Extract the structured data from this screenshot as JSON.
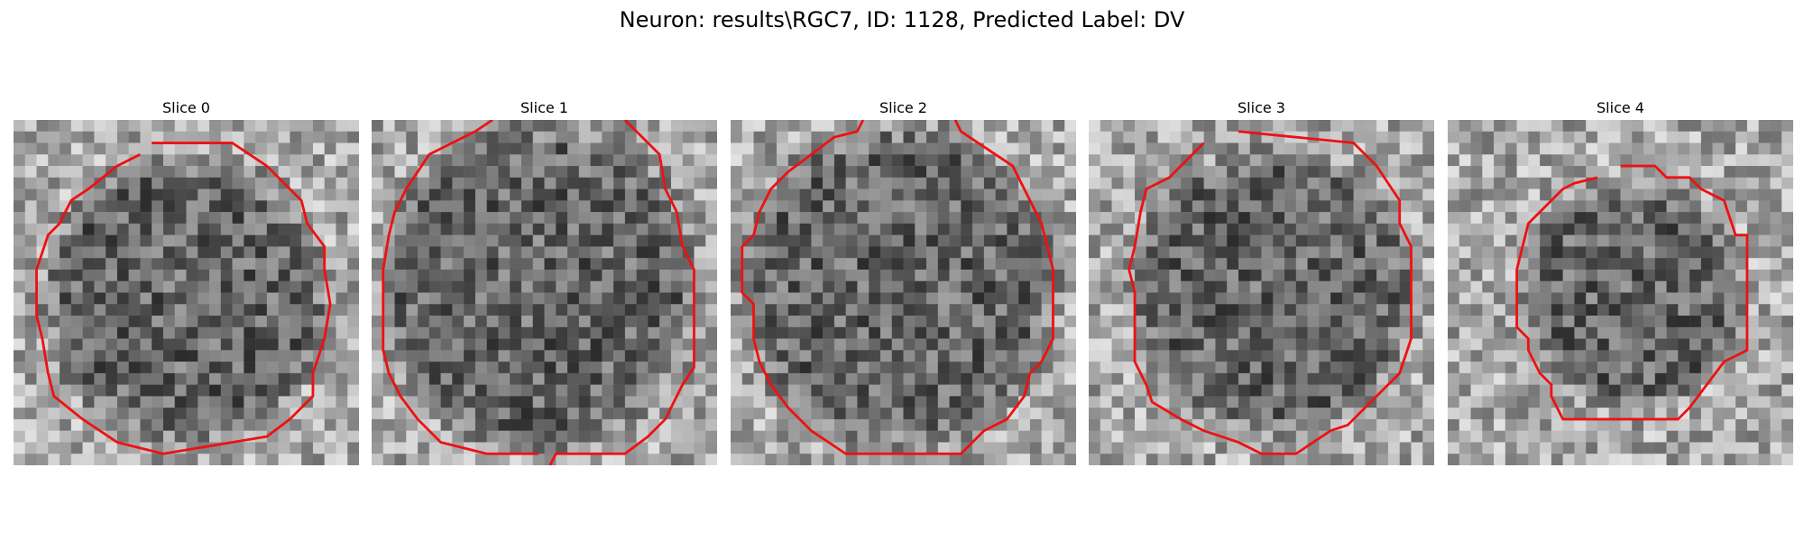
{
  "figure": {
    "title": "Neuron: results\\RGC7, ID: 1128, Predicted Label: DV"
  },
  "colors": {
    "contour": "#ee1111",
    "background": "#ffffff"
  },
  "panels": [
    {
      "label": "Slice 0"
    },
    {
      "label": "Slice 1"
    },
    {
      "label": "Slice 2"
    },
    {
      "label": "Slice 3"
    },
    {
      "label": "Slice 4"
    }
  ]
}
